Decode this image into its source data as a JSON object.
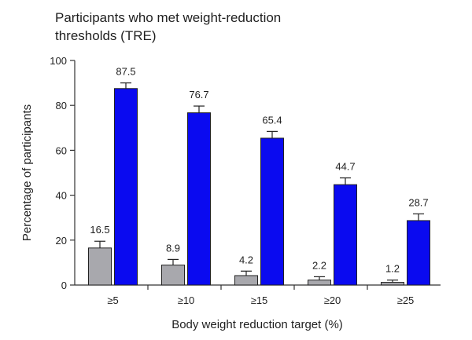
{
  "chart_data": {
    "type": "bar",
    "title_lines": [
      "Participants who met weight-reduction",
      "thresholds (TRE)"
    ],
    "xlabel": "Body weight reduction target (%)",
    "ylabel": "Percentage of participants",
    "ylim": [
      0,
      100
    ],
    "yticks": [
      0,
      20,
      40,
      60,
      80,
      100
    ],
    "categories": [
      "≥5",
      "≥10",
      "≥15",
      "≥20",
      "≥25"
    ],
    "series": [
      {
        "values": [
          16.5,
          8.9,
          4.2,
          2.2,
          1.2
        ],
        "error": [
          3.0,
          2.5,
          2.0,
          1.5,
          1.0
        ],
        "color": "#a8a8ad"
      },
      {
        "values": [
          87.5,
          76.7,
          65.4,
          44.7,
          28.7
        ],
        "error": [
          2.5,
          3.0,
          3.0,
          3.0,
          3.0
        ],
        "color": "#0a0af0"
      }
    ],
    "value_labels": [
      [
        "16.5",
        "8.9",
        "4.2",
        "2.2",
        "1.2"
      ],
      [
        "87.5",
        "76.7",
        "65.4",
        "44.7",
        "28.7"
      ]
    ],
    "grid": false,
    "legend": "none"
  }
}
